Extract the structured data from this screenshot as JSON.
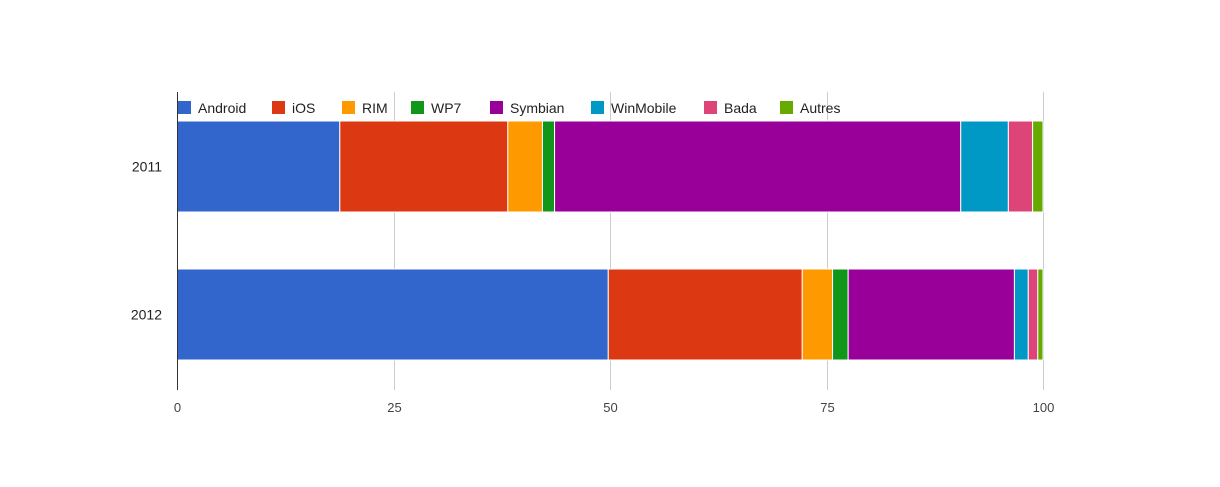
{
  "chart_data": {
    "type": "bar",
    "orientation": "horizontal",
    "stacked": true,
    "title": "",
    "xlabel": "",
    "ylabel": "",
    "categories": [
      "2011",
      "2012"
    ],
    "xlim": [
      0,
      100
    ],
    "xticks": [
      "0",
      "25",
      "50",
      "75",
      "100"
    ],
    "grid": true,
    "legend_position": "top",
    "series": [
      {
        "name": "Android",
        "color": "#3366cc",
        "values": [
          18.8,
          49.8
        ]
      },
      {
        "name": "iOS",
        "color": "#dc3912",
        "values": [
          19.4,
          22.4
        ]
      },
      {
        "name": "RIM",
        "color": "#ff9900",
        "values": [
          4.0,
          3.5
        ]
      },
      {
        "name": "WP7",
        "color": "#109618",
        "values": [
          1.4,
          1.8
        ]
      },
      {
        "name": "Symbian",
        "color": "#990099",
        "values": [
          46.9,
          19.2
        ]
      },
      {
        "name": "WinMobile",
        "color": "#0099c6",
        "values": [
          5.5,
          1.6
        ]
      },
      {
        "name": "Bada",
        "color": "#dd4477",
        "values": [
          2.8,
          1.1
        ]
      },
      {
        "name": "Autres",
        "color": "#66aa00",
        "values": [
          1.2,
          0.6
        ]
      }
    ]
  }
}
